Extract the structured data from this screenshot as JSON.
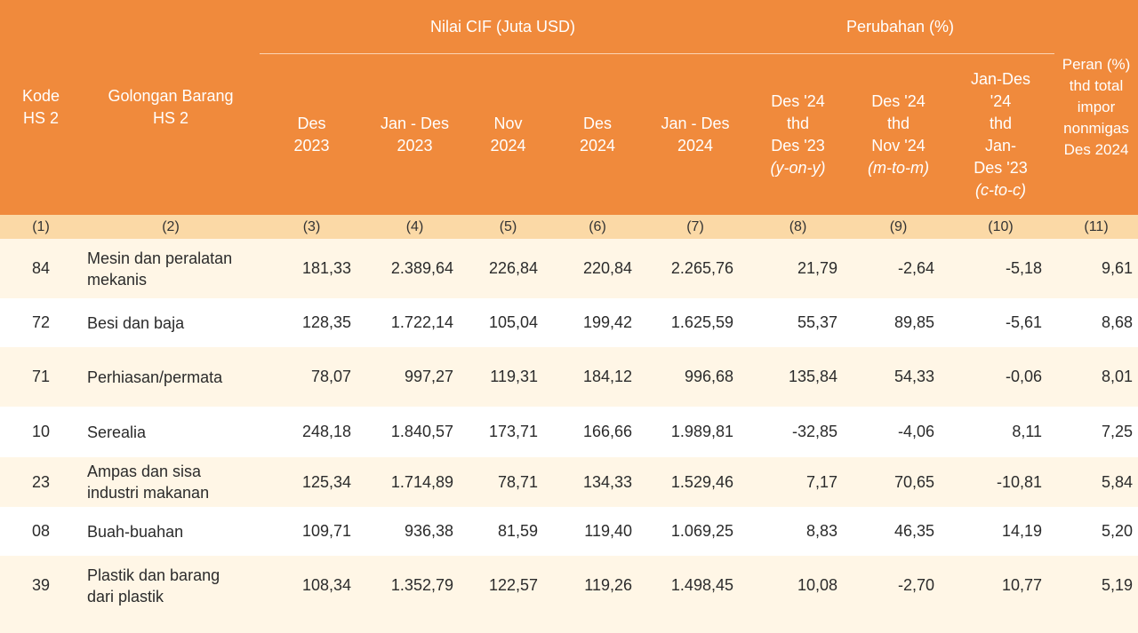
{
  "header": {
    "kode": [
      "Kode",
      "HS 2"
    ],
    "golongan": [
      "Golongan Barang",
      "HS 2"
    ],
    "nilai_group": "Nilai CIF  (Juta USD)",
    "perubahan_group": "Perubahan (%)",
    "peran": [
      "Peran (%)",
      "thd total",
      "impor",
      "nonmigas",
      "Des 2024"
    ],
    "value_cols": [
      [
        "Des",
        "2023"
      ],
      [
        "Jan - Des",
        "2023"
      ],
      [
        "Nov",
        "2024"
      ],
      [
        "Des",
        "2024"
      ],
      [
        "Jan - Des",
        "2024"
      ]
    ],
    "change_cols": [
      {
        "lines": [
          "Des '24",
          "thd",
          "Des '23"
        ],
        "italic": "(y-on-y)"
      },
      {
        "lines": [
          "Des '24",
          "thd",
          "Nov '24"
        ],
        "italic": "(m-to-m)"
      },
      {
        "lines": [
          "Jan-Des",
          "'24",
          "thd",
          "Jan-",
          "Des '23"
        ],
        "italic": "(c-to-c)"
      }
    ]
  },
  "column_numbers": [
    "(1)",
    "(2)",
    "(3)",
    "(4)",
    "(5)",
    "(6)",
    "(7)",
    "(8)",
    "(9)",
    "(10)",
    "(11)"
  ],
  "rows": [
    {
      "kode": "84",
      "name": [
        "Mesin dan peralatan",
        "mekanis"
      ],
      "values": [
        "181,33",
        "2.389,64",
        "226,84",
        "220,84",
        "2.265,76",
        "21,79",
        "-2,64",
        "-5,18",
        "9,61"
      ]
    },
    {
      "kode": "72",
      "name": [
        "Besi dan baja"
      ],
      "values": [
        "128,35",
        "1.722,14",
        "105,04",
        "199,42",
        "1.625,59",
        "55,37",
        "89,85",
        "-5,61",
        "8,68"
      ]
    },
    {
      "kode": "71",
      "name": [
        "Perhiasan/permata"
      ],
      "values": [
        "78,07",
        "997,27",
        "119,31",
        "184,12",
        "996,68",
        "135,84",
        "54,33",
        "-0,06",
        "8,01"
      ]
    },
    {
      "kode": "10",
      "name": [
        "Serealia"
      ],
      "values": [
        "248,18",
        "1.840,57",
        "173,71",
        "166,66",
        "1.989,81",
        "-32,85",
        "-4,06",
        "8,11",
        "7,25"
      ]
    },
    {
      "kode": "23",
      "name": [
        "Ampas dan sisa",
        "industri makanan"
      ],
      "values": [
        "125,34",
        "1.714,89",
        "78,71",
        "134,33",
        "1.529,46",
        "7,17",
        "70,65",
        "-10,81",
        "5,84"
      ]
    },
    {
      "kode": "08",
      "name": [
        "Buah-buahan"
      ],
      "values": [
        "109,71",
        "936,38",
        "81,59",
        "119,40",
        "1.069,25",
        "8,83",
        "46,35",
        "14,19",
        "5,20"
      ]
    },
    {
      "kode": "39",
      "name": [
        "Plastik dan barang",
        "dari plastik"
      ],
      "values": [
        "108,34",
        "1.352,79",
        "122,57",
        "119,26",
        "1.498,45",
        "10,08",
        "-2,70",
        "10,77",
        "5,19"
      ]
    }
  ],
  "colors": {
    "header_bg": "#f08a3c",
    "colnum_bg": "#fbd9a6",
    "band_bg": "#fff6e6"
  }
}
